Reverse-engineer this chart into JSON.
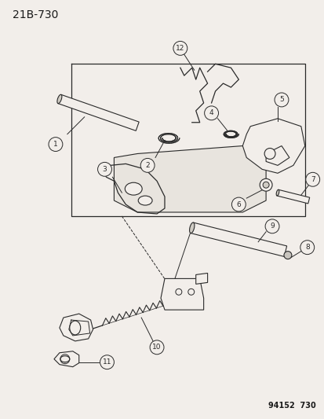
{
  "title": "21B-730",
  "footer": "94152  730",
  "bg_color": "#f2eeea",
  "line_color": "#2a2a2a",
  "text_color": "#1a1a1a",
  "title_fontsize": 10,
  "footer_fontsize": 7,
  "label_fontsize": 6.5,
  "fig_width": 4.14,
  "fig_height": 5.33,
  "dpi": 100
}
